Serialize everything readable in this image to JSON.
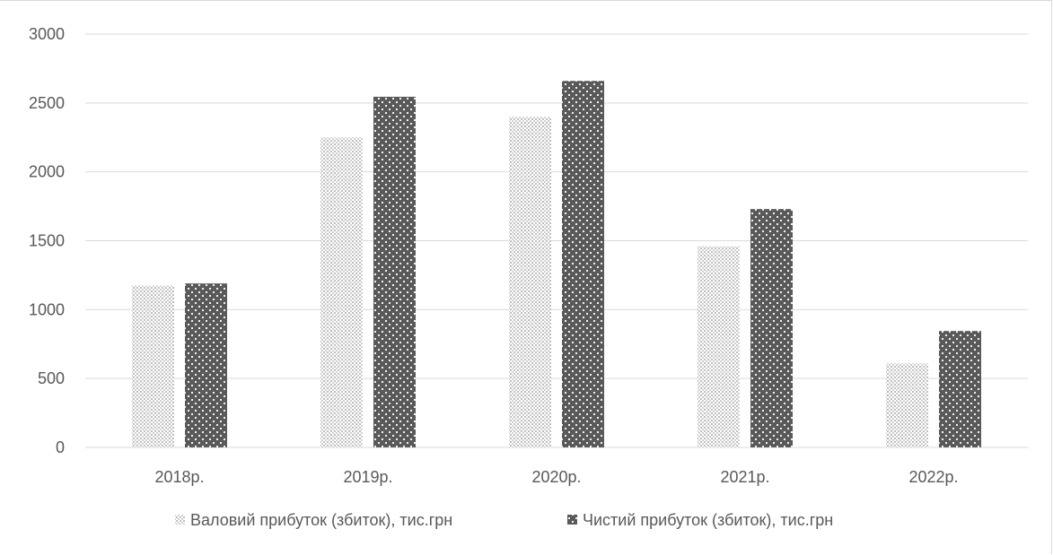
{
  "chart_data": {
    "type": "bar",
    "title": "",
    "xlabel": "",
    "ylabel": "",
    "categories": [
      "2018р.",
      "2019р.",
      "2020р.",
      "2021р.",
      "2022р."
    ],
    "series": [
      {
        "name": "Валовий прибуток (збиток), тис.грн",
        "values": [
          1175,
          2250,
          2400,
          1460,
          610
        ],
        "pattern": "light-dots"
      },
      {
        "name": "Чистий прибуток (збиток), тис.грн",
        "values": [
          1190,
          2545,
          2660,
          1730,
          845
        ],
        "pattern": "dark-dots"
      }
    ],
    "ylim": [
      0,
      3000
    ],
    "yticks": [
      "0",
      "500",
      "1000",
      "1500",
      "2000",
      "2500",
      "3000"
    ],
    "grid": true,
    "legend_position": "bottom",
    "colors": {
      "light": "#d9d9d9",
      "dark": "#595959",
      "grid": "#d9d9d9",
      "text": "#595959"
    }
  }
}
